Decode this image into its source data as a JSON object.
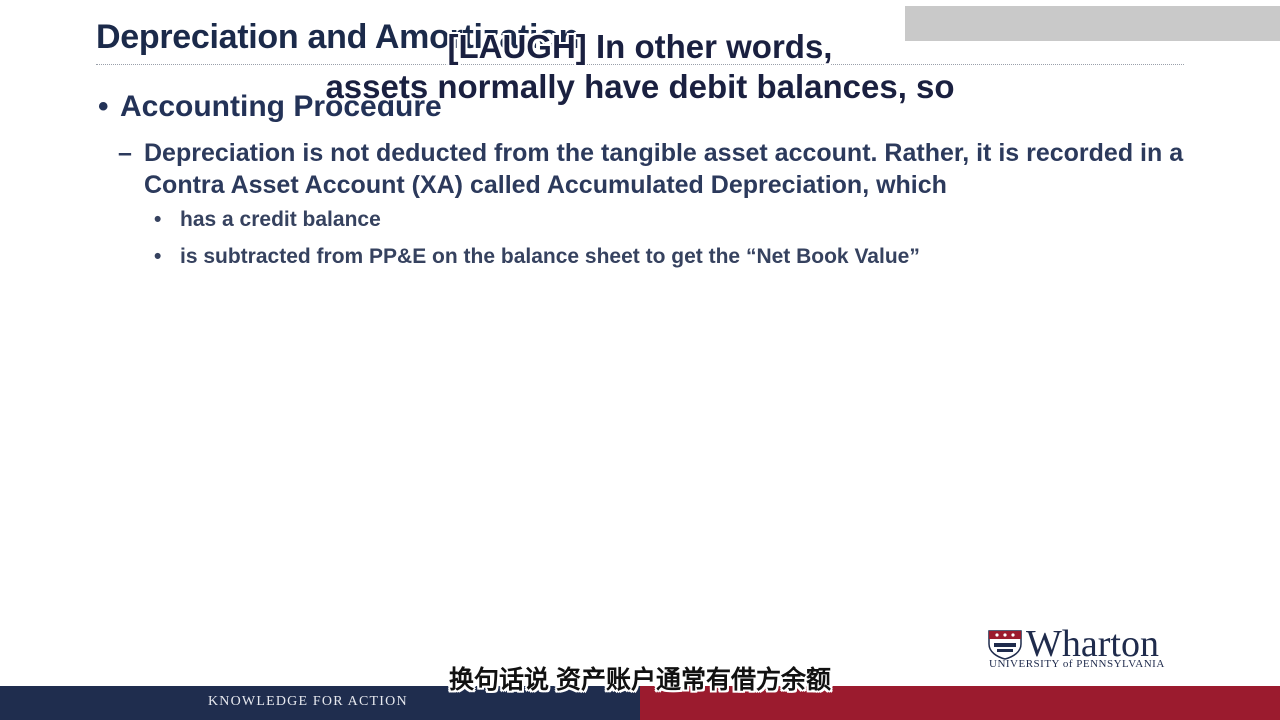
{
  "slide": {
    "title": "Depreciation and Amortization",
    "bullet1": "Accounting Procedure",
    "bullet2": "Depreciation is not deducted from the tangible asset account.  Rather, it is recorded in a Contra Asset Account (XA) called Accumulated Depreciation, which",
    "sub_bullets": [
      "has a credit balance",
      "is subtracted from PP&E on the balance sheet to get the “Net Book Value”"
    ],
    "bullet_symbol": "•",
    "dash_symbol": "–"
  },
  "subtitles": {
    "english_line1": "[LAUGH] In other words,",
    "english_line2": "assets normally have debit balances, so",
    "chinese": "换句话说 资产账户通常有借方余额"
  },
  "logo": {
    "name": "Wharton",
    "subtitle": "UNIVERSITY of PENNSYLVANIA"
  },
  "footer": {
    "tagline": "KNOWLEDGE FOR ACTION"
  },
  "colors": {
    "navy": "#1f2d4e",
    "crimson": "#9b1b2e",
    "title_text": "#1b2a4a"
  }
}
